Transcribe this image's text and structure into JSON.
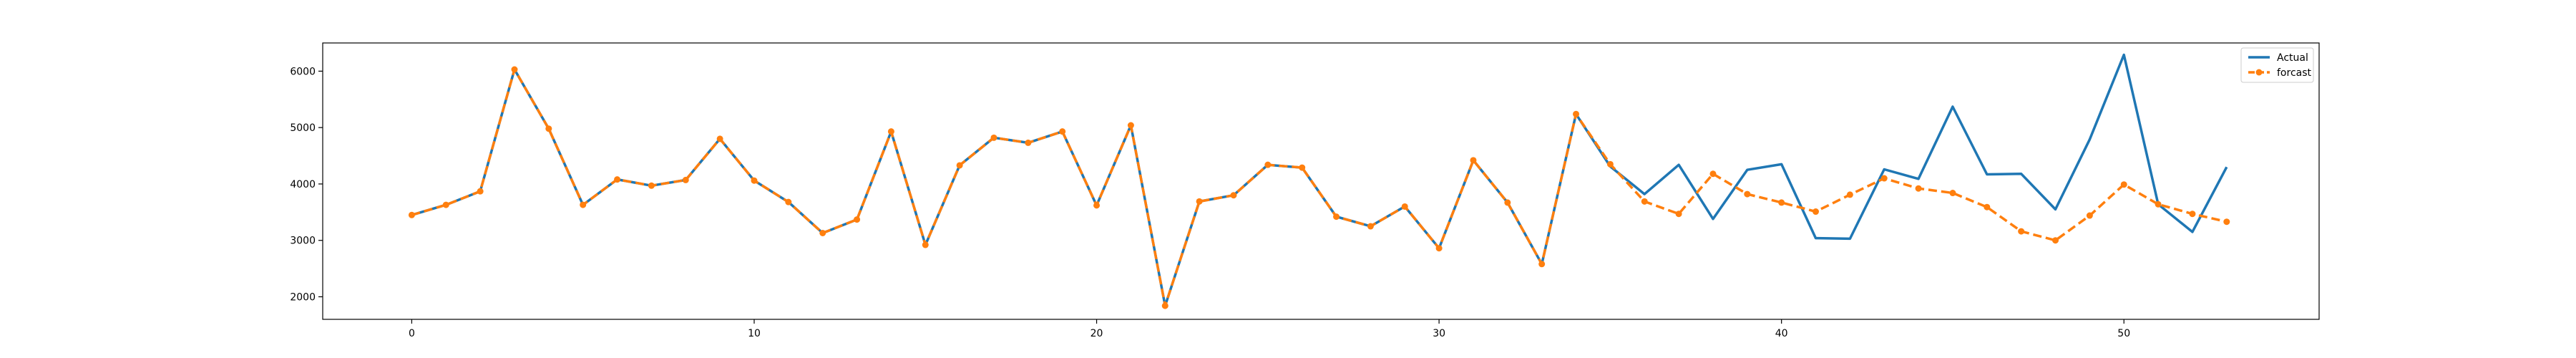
{
  "chart_data": {
    "type": "line",
    "title": "",
    "xlabel": "",
    "ylabel": "",
    "xlim": [
      -2.6,
      55.7
    ],
    "ylim": [
      1600,
      6500
    ],
    "x_ticks": [
      0,
      10,
      20,
      30,
      40,
      50
    ],
    "y_ticks": [
      2000,
      3000,
      4000,
      5000,
      6000
    ],
    "grid": false,
    "legend_position": "top-right",
    "x": [
      0,
      1,
      2,
      3,
      4,
      5,
      6,
      7,
      8,
      9,
      10,
      11,
      12,
      13,
      14,
      15,
      16,
      17,
      18,
      19,
      20,
      21,
      22,
      23,
      24,
      25,
      26,
      27,
      28,
      29,
      30,
      31,
      32,
      33,
      34,
      35,
      36,
      37,
      38,
      39,
      40,
      41,
      42,
      43,
      44,
      45,
      46,
      47,
      48,
      49,
      50,
      51,
      52,
      53
    ],
    "series": [
      {
        "name": "Actual",
        "color": "#1f77b4",
        "style": "solid",
        "values": [
          3450,
          3630,
          3870,
          6030,
          4980,
          3630,
          4080,
          3970,
          4070,
          4800,
          4060,
          3680,
          3130,
          3370,
          4930,
          2920,
          4330,
          4820,
          4730,
          4930,
          3620,
          5040,
          1840,
          3690,
          3800,
          4340,
          4290,
          3420,
          3250,
          3600,
          2860,
          4420,
          3670,
          2580,
          5240,
          4310,
          3820,
          4340,
          3380,
          4250,
          4350,
          3040,
          3030,
          4260,
          4090,
          5370,
          4170,
          4180,
          3550,
          4790,
          6290,
          3640,
          3150,
          4300
        ]
      },
      {
        "name": "forcast",
        "color": "#ff7f0e",
        "style": "dashed",
        "marker": "circle",
        "values": [
          3450,
          3630,
          3870,
          6030,
          4980,
          3630,
          4080,
          3970,
          4070,
          4800,
          4060,
          3680,
          3130,
          3370,
          4930,
          2920,
          4330,
          4820,
          4730,
          4930,
          3620,
          5040,
          1840,
          3690,
          3800,
          4340,
          4290,
          3420,
          3250,
          3600,
          2860,
          4420,
          3670,
          2580,
          5240,
          4350,
          3690,
          3470,
          4180,
          3820,
          3670,
          3510,
          3810,
          4100,
          3920,
          3840,
          3590,
          3160,
          3000,
          3440,
          3990,
          3640,
          3470,
          3330
        ]
      }
    ]
  }
}
